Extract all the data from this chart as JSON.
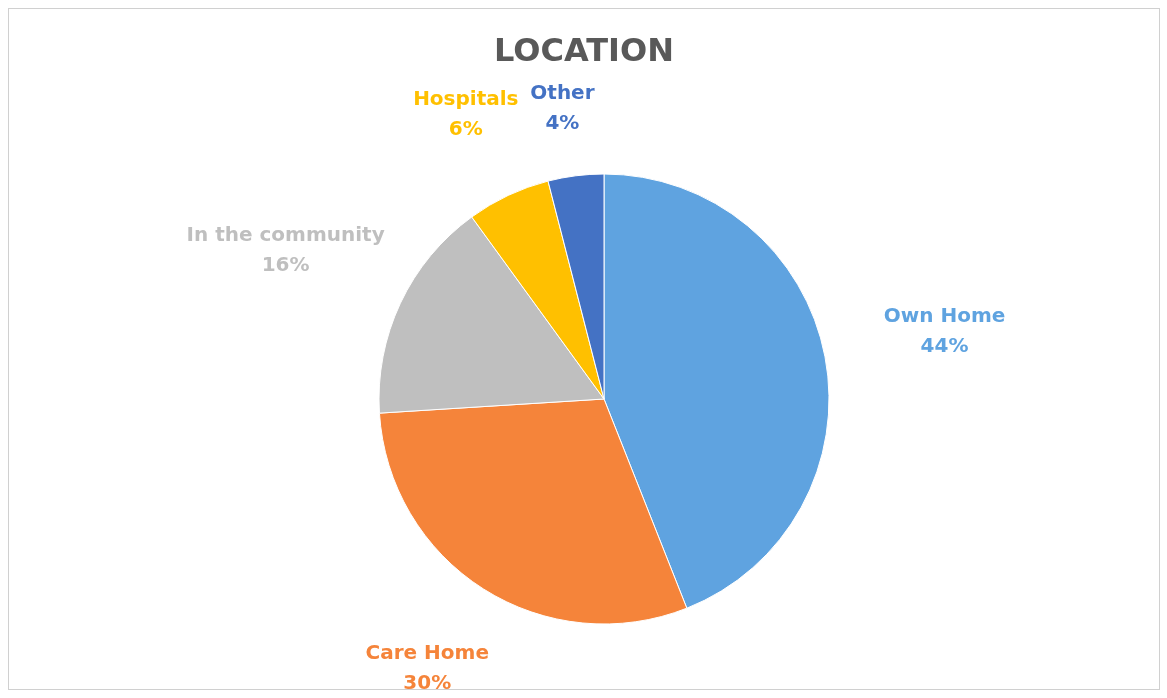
{
  "chart_data": {
    "type": "pie",
    "title": "LOCATION",
    "categories": [
      "Own Home",
      "Care Home",
      "In the community",
      "Hospitals",
      "Other"
    ],
    "values": [
      44,
      30,
      16,
      6,
      4
    ],
    "colors": [
      "#5fa3e0",
      "#f5843a",
      "#bfbfbf",
      "#ffc000",
      "#4472c4"
    ],
    "value_labels": [
      "44%",
      "30%",
      "16%",
      "6%",
      "4%"
    ]
  }
}
